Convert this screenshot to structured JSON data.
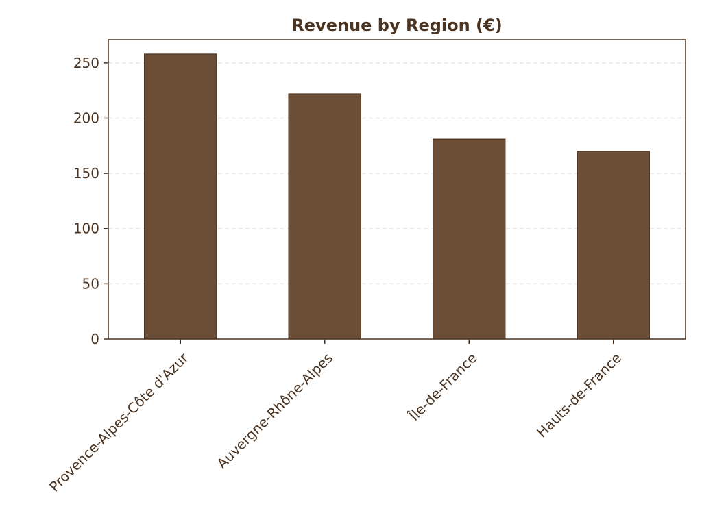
{
  "chart_data": {
    "type": "bar",
    "title": "Revenue by Region (€)",
    "xlabel": "",
    "ylabel": "",
    "categories": [
      "Provence-Alpes-Côte d'Azur",
      "Auvergne-Rhône-Alpes",
      "Île-de-France",
      "Hauts-de-France"
    ],
    "values": [
      258,
      222,
      181,
      170
    ],
    "ylim": [
      0,
      271
    ],
    "yticks": [
      0,
      50,
      100,
      150,
      200,
      250
    ],
    "grid": true,
    "legend": "none"
  },
  "colors": {
    "bar_fill": "#6d4f37",
    "bar_edge": "#4a3320",
    "text": "#4a3320",
    "axis": "#4a3320",
    "grid": "#e6e6e6",
    "background": "#ffffff"
  }
}
